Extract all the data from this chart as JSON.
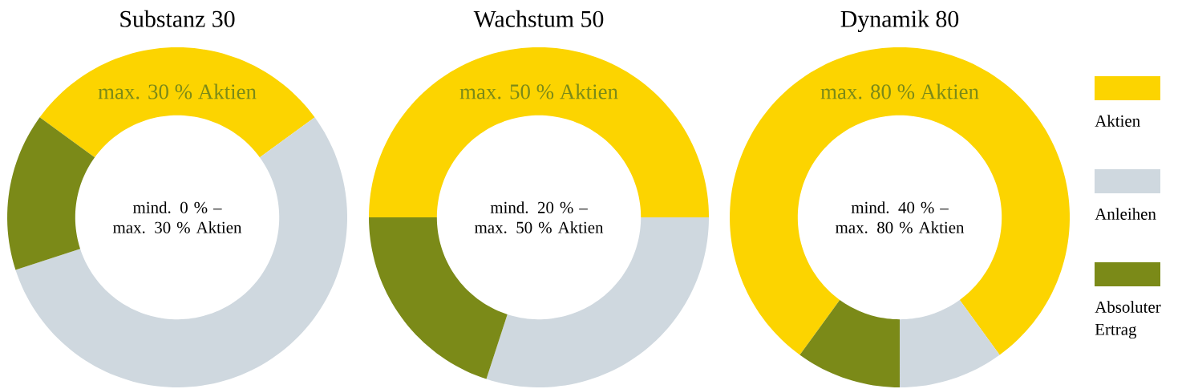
{
  "chart_data": [
    {
      "type": "donut",
      "title": "Substanz 30",
      "categories": [
        null,
        null,
        null
      ],
      "values": [
        30,
        55,
        15
      ],
      "colors": [
        "#fcd400",
        "#cfd8df",
        "#7b8a18"
      ],
      "annotations": [
        "max. 30 % Aktien",
        "mind. 0 % – max. 30 % Aktien"
      ]
    },
    {
      "type": "donut",
      "title": "Wachstum 50",
      "categories": [
        null,
        null,
        null
      ],
      "values": [
        50,
        30,
        20
      ],
      "colors": [
        "#fcd400",
        "#cfd8df",
        "#7b8a18"
      ],
      "annotations": [
        "max. 50 % Aktien",
        "mind. 20 % – max. 50 % Aktien"
      ]
    },
    {
      "type": "donut",
      "title": "Dynamik 80",
      "categories": [
        "Aktien",
        "Anleihen",
        "Absoluter Ertrag"
      ],
      "values": [
        80,
        10,
        10
      ],
      "colors": [
        "#fcd400",
        "#cfd8df",
        "#7b8a18"
      ],
      "annotations": [
        "max. 80 % Aktien",
        "mind. 40 % – max. 80 % Aktien"
      ],
      "legend": "right"
    }
  ]
}
